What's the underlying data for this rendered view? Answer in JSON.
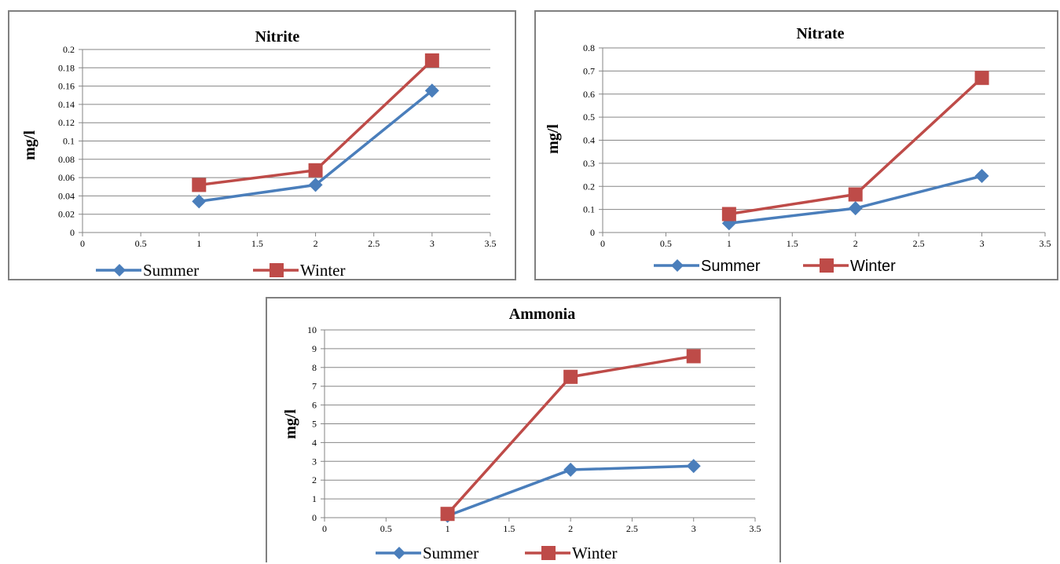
{
  "chart_data": [
    {
      "type": "line",
      "title": "Nitrite",
      "ylabel": "mg/l",
      "xlim": [
        0,
        3.5
      ],
      "ylim": [
        0,
        0.2
      ],
      "x_ticks": [
        "0",
        "0.5",
        "1",
        "1.5",
        "2",
        "2.5",
        "3",
        "3.5"
      ],
      "y_ticks": [
        "0",
        "0.02",
        "0.04",
        "0.06",
        "0.08",
        "0.1",
        "0.12",
        "0.14",
        "0.16",
        "0.18",
        "0.2"
      ],
      "grid": "horizontal",
      "legend": "bottom",
      "series": [
        {
          "name": "Summer",
          "color": "#4a7ebb",
          "marker": "diamond",
          "x": [
            1,
            2,
            3
          ],
          "y": [
            0.034,
            0.052,
            0.155
          ]
        },
        {
          "name": "Winter",
          "color": "#be4b48",
          "marker": "square",
          "x": [
            1,
            2,
            3
          ],
          "y": [
            0.052,
            0.068,
            0.188
          ]
        }
      ]
    },
    {
      "type": "line",
      "title": "Nitrate",
      "ylabel": "mg/l",
      "xlim": [
        0,
        3.5
      ],
      "ylim": [
        0,
        0.8
      ],
      "x_ticks": [
        "0",
        "0.5",
        "1",
        "1.5",
        "2",
        "2.5",
        "3",
        "3.5"
      ],
      "y_ticks": [
        "0",
        "0.1",
        "0.2",
        "0.3",
        "0.4",
        "0.5",
        "0.6",
        "0.7",
        "0.8"
      ],
      "grid": "horizontal",
      "legend": "bottom",
      "series": [
        {
          "name": "Summer",
          "color": "#4a7ebb",
          "marker": "diamond",
          "x": [
            1,
            2,
            3
          ],
          "y": [
            0.04,
            0.105,
            0.245
          ]
        },
        {
          "name": "Winter",
          "color": "#be4b48",
          "marker": "square",
          "x": [
            1,
            2,
            3
          ],
          "y": [
            0.08,
            0.165,
            0.67
          ]
        }
      ]
    },
    {
      "type": "line",
      "title": "Ammonia",
      "ylabel": "mg/l",
      "xlim": [
        0,
        3.5
      ],
      "ylim": [
        0,
        10
      ],
      "x_ticks": [
        "0",
        "0.5",
        "1",
        "1.5",
        "2",
        "2.5",
        "3",
        "3.5"
      ],
      "y_ticks": [
        "0",
        "1",
        "2",
        "3",
        "4",
        "5",
        "6",
        "7",
        "8",
        "9",
        "10"
      ],
      "grid": "horizontal",
      "legend": "bottom",
      "series": [
        {
          "name": "Summer",
          "color": "#4a7ebb",
          "marker": "diamond",
          "x": [
            1,
            2,
            3
          ],
          "y": [
            0.1,
            2.55,
            2.75
          ]
        },
        {
          "name": "Winter",
          "color": "#be4b48",
          "marker": "square",
          "x": [
            1,
            2,
            3
          ],
          "y": [
            0.2,
            7.5,
            8.6
          ]
        }
      ]
    }
  ]
}
